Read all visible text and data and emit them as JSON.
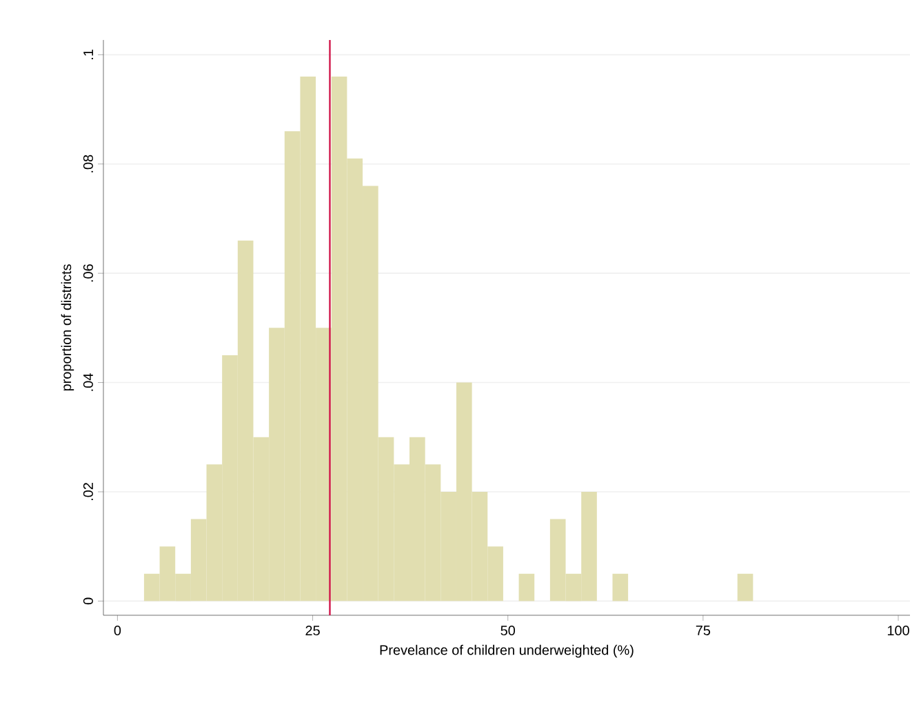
{
  "chart_data": {
    "type": "histogram",
    "xlabel": "Prevelance of children underweighted (%)",
    "ylabel": "proportion of districts",
    "bins": [
      3.4,
      5.4,
      7.4,
      9.4,
      11.4,
      13.4,
      15.4,
      17.4,
      19.4,
      21.4,
      23.4,
      25.4,
      27.4,
      29.4,
      31.4,
      33.4,
      35.4,
      37.4,
      39.4,
      41.4,
      43.4,
      45.4,
      47.4,
      49.4,
      51.4,
      53.4,
      55.4,
      57.4,
      59.4,
      61.4,
      63.4,
      65.4,
      67.4,
      69.4,
      71.4,
      73.4,
      75.4,
      77.4,
      79.4,
      81.4
    ],
    "values": [
      0.005,
      0.01,
      0.005,
      0.015,
      0.025,
      0.045,
      0.066,
      0.03,
      0.05,
      0.086,
      0.096,
      0.05,
      0.096,
      0.081,
      0.076,
      0.03,
      0.025,
      0.03,
      0.025,
      0.02,
      0.04,
      0.02,
      0.01,
      0,
      0.005,
      0,
      0.015,
      0.005,
      0.02,
      0,
      0.005,
      0,
      0,
      0,
      0,
      0,
      0,
      0,
      0.005
    ],
    "color": "#e1deb0",
    "xlim": [
      -1.8,
      101.5
    ],
    "ylim": [
      -0.0026,
      0.1027
    ],
    "xticks": [
      0,
      25,
      50,
      75,
      100
    ],
    "yticks": [
      0,
      {
        "value": 0.02,
        "label": ".02"
      },
      {
        "value": 0.04,
        "label": ".04"
      },
      {
        "value": 0.06,
        "label": ".06"
      },
      {
        "value": 0.08,
        "label": ".08"
      },
      {
        "value": 0.1,
        "label": ".1"
      }
    ],
    "ref_lines": [
      {
        "axis": "x",
        "value": 27.2,
        "color": "#d0164a"
      }
    ],
    "grid": "y"
  }
}
